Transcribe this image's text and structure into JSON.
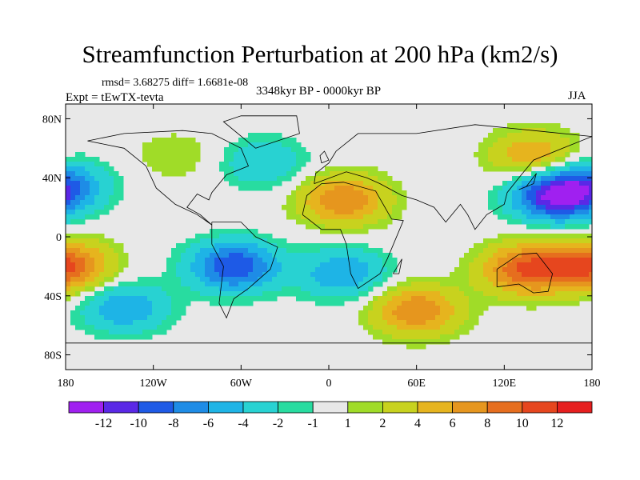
{
  "chart_data": {
    "type": "heatmap",
    "title": "Streamfunction Perturbation at 200 hPa (km2/s)",
    "stats_text": "rmsd= 3.68275  diff= 1.6681e-08",
    "period": "3348kyr BP - 0000kyr BP",
    "experiment": "Expt = tEwTX-tevta",
    "season": "JJA",
    "x_ticks": [
      "180",
      "120W",
      "60W",
      "0",
      "60E",
      "120E",
      "180"
    ],
    "x_tick_values": [
      -180,
      -120,
      -60,
      0,
      60,
      120,
      180
    ],
    "y_ticks": [
      "80N",
      "40N",
      "0",
      "40S",
      "80S"
    ],
    "y_tick_values": [
      80,
      40,
      0,
      -40,
      -80
    ],
    "xlim": [
      -180,
      180
    ],
    "ylim": [
      -90,
      90
    ],
    "colorbar_labels": [
      "-12",
      "-10",
      "-8",
      "-6",
      "-4",
      "-2",
      "-1",
      "1",
      "2",
      "4",
      "6",
      "8",
      "10",
      "12"
    ],
    "colorbar_colors": [
      "#a020f0",
      "#5a28e6",
      "#1e5ae6",
      "#1e8ce6",
      "#1eb4e6",
      "#28d2d2",
      "#28dca0",
      "#e8e8e8",
      "#a0dc28",
      "#c8d21e",
      "#e6b41e",
      "#e6961e",
      "#e66e1e",
      "#e6461e",
      "#e61e1e"
    ],
    "features": [
      {
        "name": "negative center East Asia / W Pacific",
        "lon": 155,
        "lat": 28,
        "value": -12
      },
      {
        "name": "negative center South America",
        "lon": -65,
        "lat": -20,
        "value": -10
      },
      {
        "name": "negative center South Atlantic / Africa",
        "lon": 10,
        "lat": -25,
        "value": -6
      },
      {
        "name": "negative center East Pacific south",
        "lon": -140,
        "lat": -48,
        "value": -6
      },
      {
        "name": "negative center North Atlantic",
        "lon": -45,
        "lat": 50,
        "value": -4
      },
      {
        "name": "negative center North Pacific west edge",
        "lon": -180,
        "lat": 35,
        "value": -6
      },
      {
        "name": "positive center North Africa",
        "lon": 10,
        "lat": 25,
        "value": 8
      },
      {
        "name": "positive center Australia",
        "lon": 135,
        "lat": -22,
        "value": 10
      },
      {
        "name": "positive center South Pacific west edge",
        "lon": -180,
        "lat": -20,
        "value": 10
      },
      {
        "name": "positive center South Indian Ocean",
        "lon": 60,
        "lat": -50,
        "value": 8
      },
      {
        "name": "positive center NE Asia",
        "lon": 140,
        "lat": 55,
        "value": 6
      },
      {
        "name": "positive center North America",
        "lon": -105,
        "lat": 55,
        "value": 2
      }
    ]
  }
}
